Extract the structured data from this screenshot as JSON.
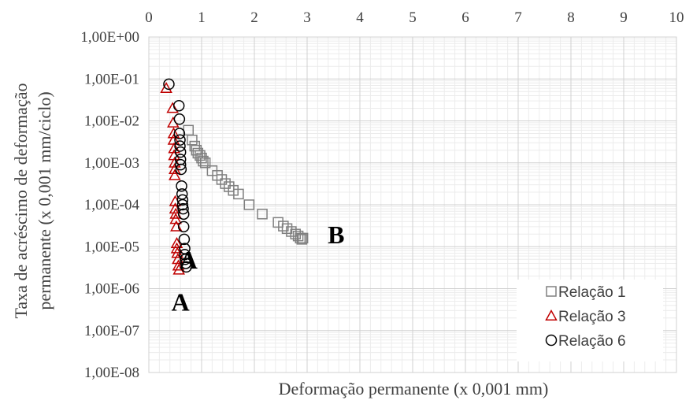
{
  "chart_data": {
    "type": "scatter",
    "title": "",
    "xlabel": "Deformação permanente (x 0,001 mm)",
    "ylabel_lines": [
      "Taxa de acréscimo  de  deformação",
      "permanente  (x 0,001 mm/ciclo)"
    ],
    "x_axis_position": "top",
    "xlim": [
      0,
      10
    ],
    "x_ticks": [
      "0",
      "1",
      "2",
      "3",
      "4",
      "5",
      "6",
      "7",
      "8",
      "9",
      "10"
    ],
    "y_scale": "log",
    "ylim": [
      1e-08,
      1
    ],
    "y_ticks": [
      "1,00E+00",
      "1,00E-01",
      "1,00E-02",
      "1,00E-03",
      "1,00E-04",
      "1,00E-05",
      "1,00E-06",
      "1,00E-07",
      "1,00E-08"
    ],
    "grid": true,
    "legend_position": "bottom-right",
    "annotations": [
      {
        "text": "A",
        "x": 0.75,
        "y": 3e-06
      },
      {
        "text": "A",
        "x": 0.6,
        "y": 3e-07
      },
      {
        "text": "B",
        "x": 3.55,
        "y": 1.2e-05
      }
    ],
    "series": [
      {
        "name": "Relação 1",
        "marker": "square",
        "color": "#808080",
        "points": [
          [
            0.75,
            0.006
          ],
          [
            0.82,
            0.0035
          ],
          [
            0.87,
            0.0025
          ],
          [
            0.9,
            0.002
          ],
          [
            0.93,
            0.0017
          ],
          [
            0.97,
            0.0015
          ],
          [
            1.0,
            0.0013
          ],
          [
            1.03,
            0.0011
          ],
          [
            1.07,
            0.001
          ],
          [
            1.2,
            0.00065
          ],
          [
            1.3,
            0.0005
          ],
          [
            1.38,
            0.0004
          ],
          [
            1.45,
            0.00032
          ],
          [
            1.52,
            0.00027
          ],
          [
            1.6,
            0.00022
          ],
          [
            1.7,
            0.00018
          ],
          [
            1.9,
            0.0001
          ],
          [
            2.15,
            6e-05
          ],
          [
            2.45,
            3.8e-05
          ],
          [
            2.55,
            3.1e-05
          ],
          [
            2.62,
            2.7e-05
          ],
          [
            2.7,
            2.3e-05
          ],
          [
            2.78,
            2e-05
          ],
          [
            2.83,
            1.8e-05
          ],
          [
            2.87,
            1.6e-05
          ],
          [
            2.9,
            1.5e-05
          ],
          [
            2.92,
            1.6e-05
          ]
        ]
      },
      {
        "name": "Relação 3",
        "marker": "triangle",
        "color": "#c00000",
        "points": [
          [
            0.33,
            0.06
          ],
          [
            0.45,
            0.02
          ],
          [
            0.46,
            0.009
          ],
          [
            0.47,
            0.005
          ],
          [
            0.47,
            0.0035
          ],
          [
            0.48,
            0.0022
          ],
          [
            0.48,
            0.0015
          ],
          [
            0.49,
            0.001
          ],
          [
            0.49,
            0.0007
          ],
          [
            0.49,
            0.0005
          ],
          [
            0.5,
            0.00012
          ],
          [
            0.5,
            8e-05
          ],
          [
            0.51,
            6e-05
          ],
          [
            0.51,
            4.5e-05
          ],
          [
            0.52,
            3e-05
          ],
          [
            0.53,
            1.2e-05
          ],
          [
            0.53,
            9e-06
          ],
          [
            0.54,
            7e-06
          ],
          [
            0.55,
            5e-06
          ],
          [
            0.56,
            3.5e-06
          ],
          [
            0.57,
            2.8e-06
          ]
        ]
      },
      {
        "name": "Relação 6",
        "marker": "circle",
        "color": "#000000",
        "points": [
          [
            0.38,
            0.075
          ],
          [
            0.57,
            0.023
          ],
          [
            0.58,
            0.011
          ],
          [
            0.58,
            0.005
          ],
          [
            0.59,
            0.0035
          ],
          [
            0.59,
            0.0025
          ],
          [
            0.6,
            0.0018
          ],
          [
            0.6,
            0.0012
          ],
          [
            0.6,
            0.0009
          ],
          [
            0.61,
            0.0007
          ],
          [
            0.62,
            0.00028
          ],
          [
            0.63,
            0.00018
          ],
          [
            0.64,
            0.00013
          ],
          [
            0.64,
            0.0001
          ],
          [
            0.65,
            8e-05
          ],
          [
            0.66,
            6e-05
          ],
          [
            0.66,
            3e-05
          ],
          [
            0.67,
            1.5e-05
          ],
          [
            0.68,
            9e-06
          ],
          [
            0.68,
            6.5e-06
          ],
          [
            0.69,
            5e-06
          ],
          [
            0.7,
            4e-06
          ],
          [
            0.71,
            3.3e-06
          ]
        ]
      }
    ]
  }
}
